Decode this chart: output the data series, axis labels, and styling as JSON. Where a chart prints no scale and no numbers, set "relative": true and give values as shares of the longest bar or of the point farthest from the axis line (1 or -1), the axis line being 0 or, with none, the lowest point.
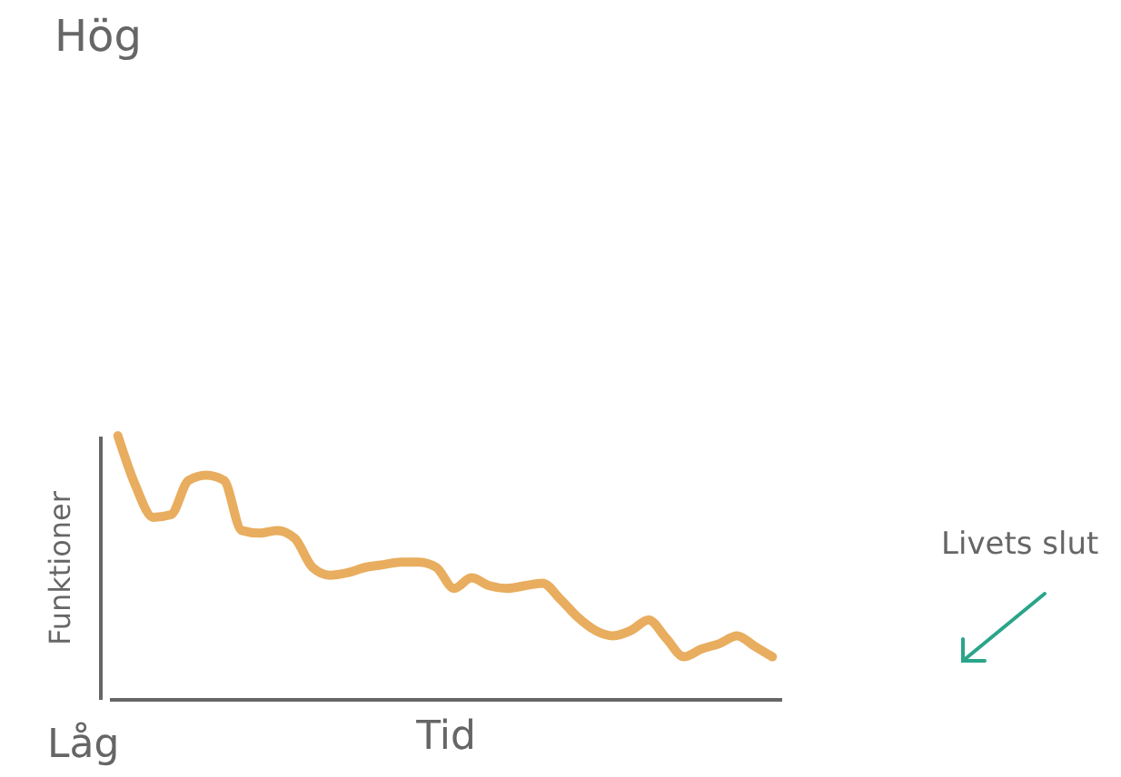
{
  "chart_data": {
    "type": "line",
    "relative": true,
    "xlabel": "Tid",
    "ylabel": "Funktioner",
    "annotations": [
      "Hög",
      "Låg",
      "Livets slut"
    ],
    "categories": [
      null,
      null,
      null,
      null,
      null,
      null,
      null,
      null,
      null,
      null,
      null,
      null,
      null,
      null,
      null,
      null,
      null,
      null,
      null,
      null,
      null,
      null,
      null,
      null,
      null,
      null,
      null,
      null,
      null,
      null,
      null,
      null,
      null,
      null,
      null,
      null,
      null,
      null
    ],
    "series": [
      {
        "color": "#e8ad5e",
        "values": [
          1,
          0.81,
          0.69,
          0.7,
          0.83,
          0.85,
          0.83,
          0.64,
          0.63,
          0.64,
          0.61,
          0.5,
          0.47,
          0.48,
          0.5,
          0.51,
          0.52,
          0.52,
          0.5,
          0.42,
          0.46,
          0.43,
          0.42,
          0.43,
          0.44,
          0.38,
          0.31,
          0.26,
          0.24,
          0.26,
          0.3,
          0.23,
          0.16,
          0.19,
          0.21,
          0.24,
          0.2,
          0.16
        ]
      }
    ],
    "grid": false,
    "legend": false,
    "marker": "none",
    "line_style": "solid"
  }
}
